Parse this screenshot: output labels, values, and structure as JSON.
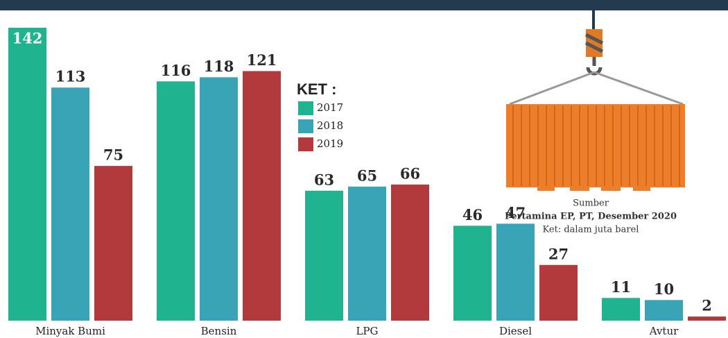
{
  "chart_data": {
    "type": "bar",
    "categories": [
      "Minyak Bumi",
      "Bensin",
      "LPG",
      "Diesel",
      "Avtur"
    ],
    "series": [
      {
        "name": "2017",
        "color": "#20b38f",
        "values": [
          142,
          116,
          63,
          46,
          11
        ]
      },
      {
        "name": "2018",
        "color": "#39a4b6",
        "values": [
          113,
          118,
          65,
          47,
          10
        ]
      },
      {
        "name": "2019",
        "color": "#b2393c",
        "values": [
          75,
          121,
          66,
          27,
          2
        ]
      }
    ],
    "legend_title": "KET :",
    "source_label": "Sumber",
    "source": "Pertamina EP, PT, Desember 2020",
    "note": "Ket: dalam juta barel"
  }
}
